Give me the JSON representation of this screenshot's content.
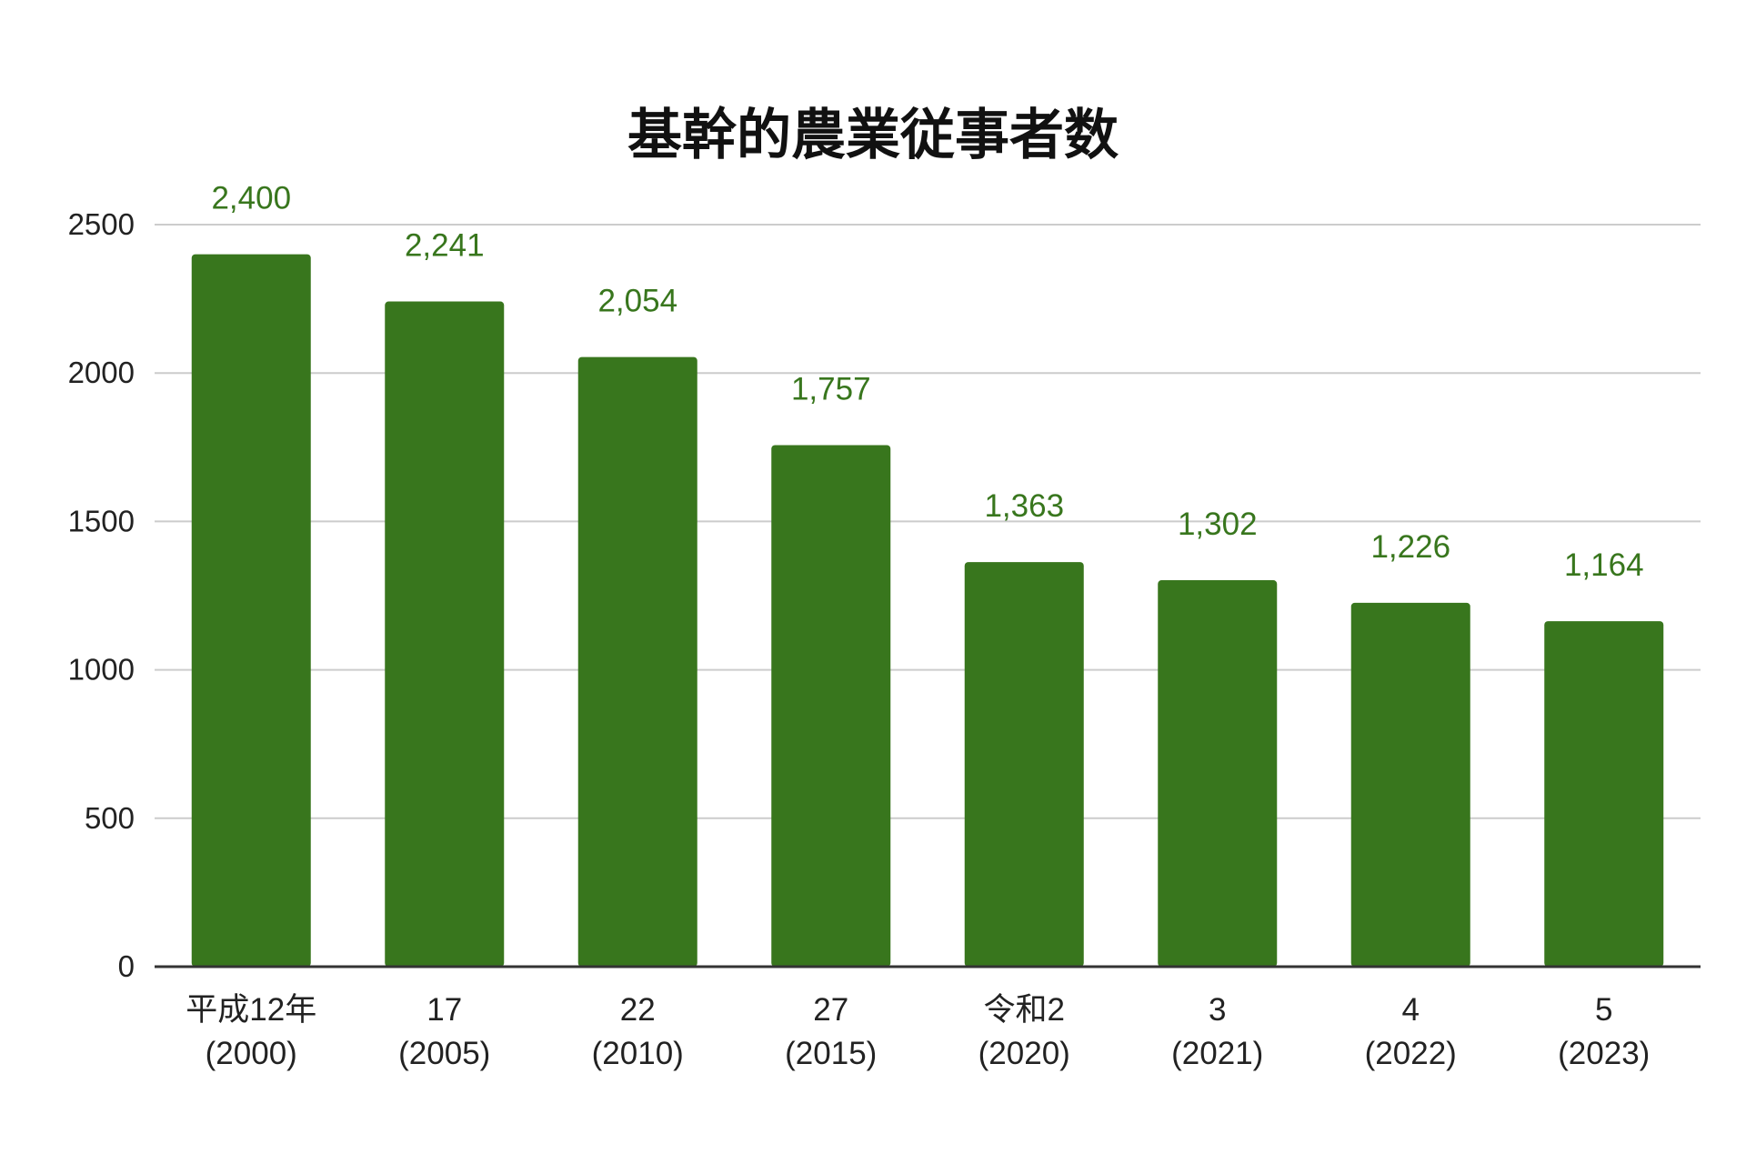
{
  "chart_data": {
    "type": "bar",
    "title": "基幹的農業従事者数",
    "categories": [
      [
        "平成12年",
        "(2000)"
      ],
      [
        "17",
        "(2005)"
      ],
      [
        "22",
        "(2010)"
      ],
      [
        "27",
        "(2015)"
      ],
      [
        "令和2",
        "(2020)"
      ],
      [
        "3",
        "(2021)"
      ],
      [
        "4",
        "(2022)"
      ],
      [
        "5",
        "(2023)"
      ]
    ],
    "values": [
      2400,
      2241,
      2054,
      1757,
      1363,
      1302,
      1226,
      1164
    ],
    "data_labels": [
      "2,400",
      "2,241",
      "2,054",
      "1,757",
      "1,363",
      "1,302",
      "1,226",
      "1,164"
    ],
    "y_ticks": [
      0,
      500,
      1000,
      1500,
      2000,
      2500
    ],
    "ylim": [
      0,
      2500
    ],
    "grid": true,
    "legend": "none",
    "bar_color": "#38761d",
    "label_color": "#38761d"
  }
}
